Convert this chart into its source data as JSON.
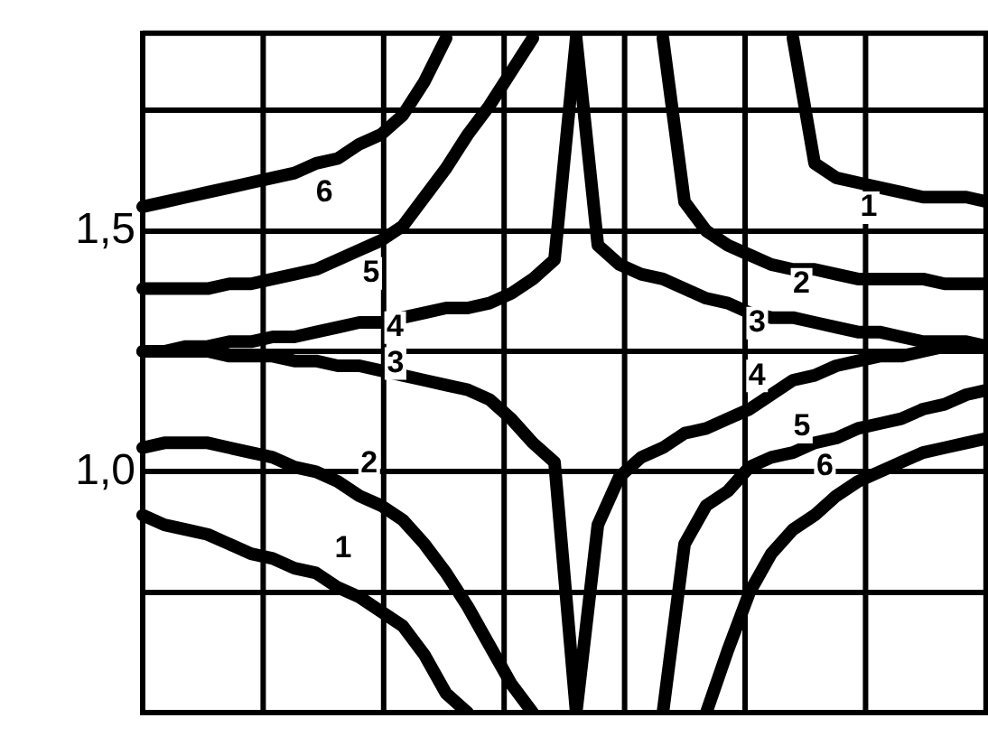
{
  "chart_data": {
    "type": "line",
    "categories": [
      null,
      null,
      null,
      null,
      null,
      null,
      null,
      null,
      null,
      null,
      null,
      null,
      null,
      null,
      null,
      null,
      null,
      null,
      null,
      null,
      null,
      null,
      null,
      null,
      null,
      null,
      null,
      null,
      null,
      null,
      null,
      null,
      null,
      null,
      null,
      null,
      null,
      null,
      null,
      null
    ],
    "ylim": [
      0.5,
      1.91
    ],
    "yticks": [
      {
        "value": 0.5,
        "label": null
      },
      {
        "value": 0.75,
        "label": null
      },
      {
        "value": 1.0,
        "label": "1,0"
      },
      {
        "value": 1.25,
        "label": null
      },
      {
        "value": 1.5,
        "label": "1,5"
      },
      {
        "value": 1.75,
        "label": null
      }
    ],
    "grid": true,
    "legend": false,
    "marker": "none",
    "line_style": "solid",
    "series": [
      {
        "name": "1",
        "color": "#000000",
        "values": [
          0.91,
          0.89,
          0.88,
          0.87,
          0.85,
          0.83,
          0.82,
          0.8,
          0.79,
          0.76,
          0.74,
          0.71,
          0.68,
          0.62,
          0.54,
          0.5,
          null,
          null,
          null,
          null,
          null,
          null,
          null,
          null,
          null,
          null,
          null,
          null,
          null,
          null,
          null,
          null,
          null,
          null,
          null,
          null,
          null,
          null,
          null,
          null
        ]
      },
      {
        "name": "1",
        "color": "#000000",
        "values": [
          null,
          null,
          null,
          null,
          null,
          null,
          null,
          null,
          null,
          null,
          null,
          null,
          null,
          null,
          null,
          null,
          null,
          null,
          null,
          null,
          null,
          null,
          null,
          null,
          null,
          null,
          null,
          null,
          null,
          null,
          1.9,
          1.64,
          1.61,
          1.6,
          1.59,
          1.58,
          1.57,
          1.57,
          1.57,
          1.56
        ]
      },
      {
        "name": "2",
        "color": "#000000",
        "values": [
          1.05,
          1.06,
          1.06,
          1.06,
          1.05,
          1.04,
          1.03,
          1.01,
          1.0,
          0.98,
          0.95,
          0.93,
          0.9,
          0.85,
          0.79,
          0.72,
          0.64,
          0.56,
          0.5,
          null,
          null,
          null,
          null,
          null,
          null,
          null,
          null,
          null,
          null,
          null,
          null,
          null,
          null,
          null,
          null,
          null,
          null,
          null,
          null,
          null
        ]
      },
      {
        "name": "2",
        "color": "#000000",
        "values": [
          null,
          null,
          null,
          null,
          null,
          null,
          null,
          null,
          null,
          null,
          null,
          null,
          null,
          null,
          null,
          null,
          null,
          null,
          null,
          null,
          null,
          null,
          null,
          null,
          1.9,
          1.56,
          1.5,
          1.47,
          1.45,
          1.43,
          1.42,
          1.42,
          1.41,
          1.4,
          1.4,
          1.4,
          1.4,
          1.39,
          1.39,
          1.39
        ]
      },
      {
        "name": "3",
        "color": "#000000",
        "values": [
          1.25,
          1.25,
          1.25,
          1.25,
          1.24,
          1.24,
          1.24,
          1.23,
          1.23,
          1.22,
          1.22,
          1.21,
          1.2,
          1.19,
          1.18,
          1.17,
          1.15,
          1.11,
          1.06,
          1.02,
          0.5,
          null,
          null,
          null,
          null,
          null,
          null,
          null,
          null,
          null,
          null,
          null,
          null,
          null,
          null,
          null,
          null,
          null,
          null,
          null
        ]
      },
      {
        "name": "3",
        "color": "#000000",
        "values": [
          null,
          null,
          null,
          null,
          null,
          null,
          null,
          null,
          null,
          null,
          null,
          null,
          null,
          null,
          null,
          null,
          null,
          null,
          null,
          null,
          1.9,
          1.47,
          1.43,
          1.41,
          1.4,
          1.38,
          1.36,
          1.35,
          1.33,
          1.32,
          1.32,
          1.31,
          1.3,
          1.29,
          1.29,
          1.28,
          1.27,
          1.27,
          1.27,
          1.26
        ]
      },
      {
        "name": "4",
        "color": "#000000",
        "values": [
          1.25,
          1.25,
          1.26,
          1.26,
          1.27,
          1.27,
          1.28,
          1.28,
          1.29,
          1.3,
          1.31,
          1.31,
          1.32,
          1.33,
          1.34,
          1.34,
          1.35,
          1.37,
          1.4,
          1.44,
          1.9,
          null,
          null,
          null,
          null,
          null,
          null,
          null,
          null,
          null,
          null,
          null,
          null,
          null,
          null,
          null,
          null,
          null,
          null,
          null
        ]
      },
      {
        "name": "4",
        "color": "#000000",
        "values": [
          null,
          null,
          null,
          null,
          null,
          null,
          null,
          null,
          null,
          null,
          null,
          null,
          null,
          null,
          null,
          null,
          null,
          null,
          null,
          null,
          0.5,
          0.89,
          0.99,
          1.03,
          1.05,
          1.08,
          1.09,
          1.11,
          1.13,
          1.16,
          1.19,
          1.2,
          1.22,
          1.23,
          1.24,
          1.24,
          1.25,
          1.26,
          1.26,
          1.26
        ]
      },
      {
        "name": "5",
        "color": "#000000",
        "values": [
          1.38,
          1.38,
          1.38,
          1.38,
          1.39,
          1.39,
          1.4,
          1.41,
          1.42,
          1.44,
          1.46,
          1.48,
          1.51,
          1.57,
          1.63,
          1.7,
          1.76,
          1.83,
          1.9,
          null,
          null,
          null,
          null,
          null,
          null,
          null,
          null,
          null,
          null,
          null,
          null,
          null,
          null,
          null,
          null,
          null,
          null,
          null,
          null,
          null
        ]
      },
      {
        "name": "5",
        "color": "#000000",
        "values": [
          null,
          null,
          null,
          null,
          null,
          null,
          null,
          null,
          null,
          null,
          null,
          null,
          null,
          null,
          null,
          null,
          null,
          null,
          null,
          null,
          null,
          null,
          null,
          null,
          0.5,
          0.85,
          0.93,
          0.96,
          1.01,
          1.03,
          1.04,
          1.06,
          1.07,
          1.09,
          1.1,
          1.11,
          1.13,
          1.14,
          1.16,
          1.17
        ]
      },
      {
        "name": "6",
        "color": "#000000",
        "values": [
          1.55,
          1.56,
          1.57,
          1.58,
          1.59,
          1.6,
          1.61,
          1.62,
          1.64,
          1.65,
          1.68,
          1.7,
          1.74,
          1.81,
          1.9,
          null,
          null,
          null,
          null,
          null,
          null,
          null,
          null,
          null,
          null,
          null,
          null,
          null,
          null,
          null,
          null,
          null,
          null,
          null,
          null,
          null,
          null,
          null,
          null,
          null
        ]
      },
      {
        "name": "6",
        "color": "#000000",
        "values": [
          null,
          null,
          null,
          null,
          null,
          null,
          null,
          null,
          null,
          null,
          null,
          null,
          null,
          null,
          null,
          null,
          null,
          null,
          null,
          null,
          null,
          null,
          null,
          null,
          null,
          null,
          0.5,
          0.63,
          0.75,
          0.83,
          0.88,
          0.91,
          0.95,
          0.98,
          1.0,
          1.02,
          1.04,
          1.05,
          1.06,
          1.07
        ]
      }
    ]
  }
}
